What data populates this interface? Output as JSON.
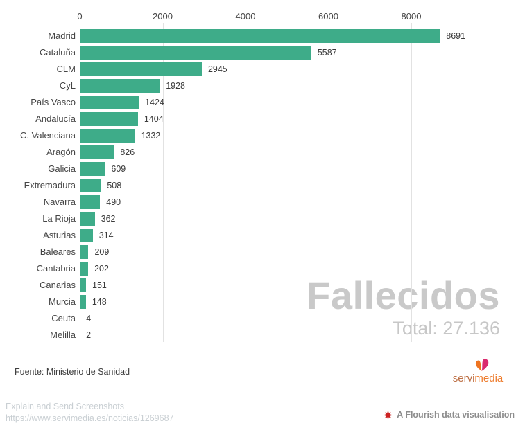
{
  "chart_data": {
    "type": "bar",
    "orientation": "horizontal",
    "title": "Fallecidos",
    "subtitle": "Total: 27.136",
    "xlabel": "",
    "ylabel": "",
    "grid": true,
    "legend": "none",
    "bar_color": "#3eac89",
    "xlim": [
      0,
      9500
    ],
    "x_ticks": [
      0,
      2000,
      4000,
      6000,
      8000
    ],
    "x_tick_labels": [
      "0",
      "2000",
      "4000",
      "6000",
      "8000"
    ],
    "categories": [
      "Madrid",
      "Cataluña",
      "CLM",
      "CyL",
      "País Vasco",
      "Andalucía",
      "C. Valenciana",
      "Aragón",
      "Galicia",
      "Extremadura",
      "Navarra",
      "La Rioja",
      "Asturias",
      "Baleares",
      "Cantabria",
      "Canarias",
      "Murcia",
      "Ceuta",
      "Melilla"
    ],
    "values": [
      8691,
      5587,
      2945,
      1928,
      1424,
      1404,
      1332,
      826,
      609,
      508,
      490,
      362,
      314,
      209,
      202,
      151,
      148,
      4,
      2
    ]
  },
  "watermark": {
    "title": "Fallecidos",
    "total": "Total: 27.136"
  },
  "footer": {
    "source": "Fuente: Ministerio de Sanidad"
  },
  "branding": {
    "logo_text_left": "servi",
    "logo_text_right": "media",
    "heart_left_color": "#ee7420",
    "heart_right_color": "#da2a6e"
  },
  "overlay": {
    "extension_name": "Explain and Send Screenshots",
    "url": "https://www.servimedia.es/noticias/1269687"
  },
  "attribution": {
    "label": "A Flourish data visualisation",
    "icon_color": "#cc2222"
  }
}
